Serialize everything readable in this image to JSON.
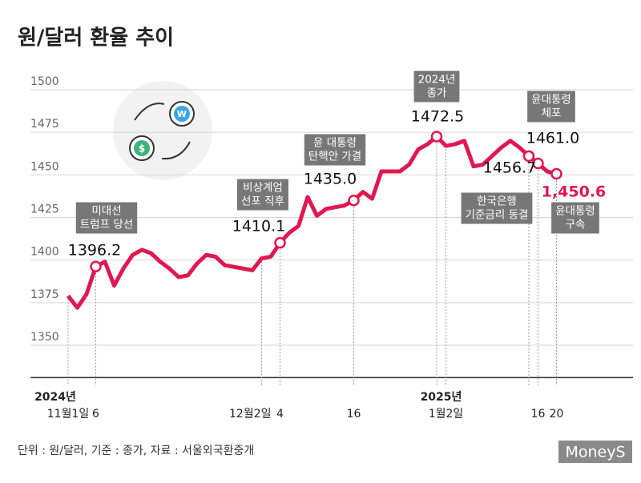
{
  "chart_data": {
    "type": "line",
    "title": "원/달러 환율 추이",
    "footnote": "단위 : 원/달러, 기준 : 종가, 자료 : 서울외국환중개",
    "logo": "MoneyS",
    "year_labels": [
      "2024년",
      "2025년"
    ],
    "categories": [
      "11월1일",
      null,
      null,
      "6",
      null,
      null,
      null,
      null,
      null,
      null,
      null,
      null,
      null,
      null,
      null,
      null,
      null,
      null,
      null,
      null,
      null,
      "12월2일",
      null,
      "4",
      null,
      null,
      null,
      null,
      null,
      null,
      null,
      "16",
      null,
      null,
      null,
      null,
      null,
      null,
      null,
      null,
      null,
      "1월2일",
      null,
      null,
      null,
      null,
      null,
      null,
      null,
      null,
      null,
      "16",
      null,
      "20"
    ],
    "series": [
      {
        "name": "원/달러 환율",
        "color": "#e0184f",
        "values": [
          1379,
          1372,
          1380,
          1396.2,
          1399,
          1385,
          1395,
          1403,
          1406,
          1404,
          1399,
          1395,
          1390,
          1391,
          1398,
          1403,
          1402,
          1397,
          1396,
          1395,
          1394,
          1401,
          1402,
          1410.1,
          1416,
          1420,
          1437,
          1426,
          1430,
          1431,
          1432,
          1435.0,
          1440,
          1436,
          1452,
          1452,
          1452,
          1456,
          1465,
          1468,
          1472.5,
          1467,
          1468,
          1470,
          1455,
          1456,
          1461,
          1466,
          1470,
          1466,
          1461.0,
          1456.7,
          1452,
          1450.6
        ],
        "value_labels": [
          null,
          null,
          null,
          "1396.2",
          null,
          null,
          null,
          null,
          null,
          null,
          null,
          null,
          null,
          null,
          null,
          null,
          null,
          null,
          null,
          null,
          null,
          null,
          null,
          "1410.1",
          null,
          null,
          null,
          null,
          null,
          null,
          null,
          "1435.0",
          null,
          null,
          null,
          null,
          null,
          null,
          null,
          null,
          "1472.5",
          null,
          null,
          null,
          null,
          null,
          null,
          null,
          null,
          null,
          "1461.0",
          "1456.7",
          null,
          "1,450.6"
        ]
      }
    ],
    "annotations": [
      "미대선\n트럼프 당선",
      "비상계엄\n선포 직후",
      "윤 대통령\n탄핵안  가결",
      "2024년\n종가",
      "윤대통령\n체포",
      "한국은행\n기준금리 동결",
      "윤대통령\n구속"
    ],
    "ylim": [
      1331,
      1510
    ],
    "yticks": [
      1350,
      1375,
      1400,
      1425,
      1450,
      1475,
      1500
    ],
    "grid": true
  }
}
